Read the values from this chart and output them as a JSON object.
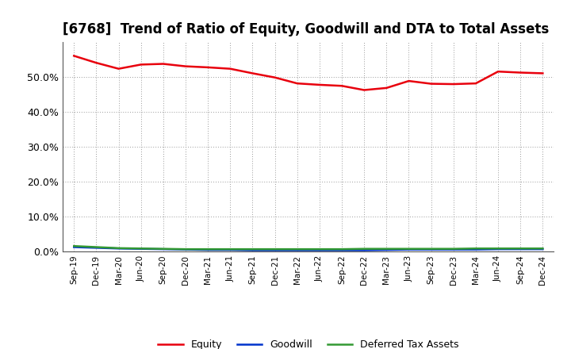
{
  "title": "[6768]  Trend of Ratio of Equity, Goodwill and DTA to Total Assets",
  "labels": [
    "Sep-19",
    "Dec-19",
    "Mar-20",
    "Jun-20",
    "Sep-20",
    "Dec-20",
    "Mar-21",
    "Jun-21",
    "Sep-21",
    "Dec-21",
    "Mar-22",
    "Jun-22",
    "Sep-22",
    "Dec-22",
    "Mar-23",
    "Jun-23",
    "Sep-23",
    "Dec-23",
    "Mar-24",
    "Jun-24",
    "Sep-24",
    "Dec-24"
  ],
  "equity": [
    56.0,
    54.0,
    52.3,
    53.5,
    53.7,
    53.0,
    52.7,
    52.3,
    51.0,
    49.8,
    48.1,
    47.7,
    47.4,
    46.2,
    46.8,
    48.8,
    48.0,
    47.9,
    48.1,
    51.5,
    51.2,
    51.0
  ],
  "goodwill": [
    1.2,
    1.0,
    0.8,
    0.7,
    0.6,
    0.5,
    0.4,
    0.4,
    0.3,
    0.3,
    0.3,
    0.3,
    0.3,
    0.3,
    0.4,
    0.5,
    0.5,
    0.5,
    0.5,
    0.6,
    0.6,
    0.6
  ],
  "dta": [
    1.5,
    1.2,
    0.9,
    0.8,
    0.7,
    0.6,
    0.6,
    0.6,
    0.6,
    0.6,
    0.6,
    0.6,
    0.6,
    0.7,
    0.7,
    0.7,
    0.7,
    0.7,
    0.8,
    0.8,
    0.8,
    0.8
  ],
  "equity_color": "#e8000d",
  "goodwill_color": "#0033cc",
  "dta_color": "#339933",
  "ylim": [
    0,
    60
  ],
  "yticks": [
    0,
    10,
    20,
    30,
    40,
    50
  ],
  "ytick_labels": [
    "0.0%",
    "10.0%",
    "20.0%",
    "30.0%",
    "40.0%",
    "50.0%"
  ],
  "legend_labels": [
    "Equity",
    "Goodwill",
    "Deferred Tax Assets"
  ],
  "background_color": "#ffffff",
  "grid_color": "#999999",
  "title_fontsize": 12,
  "linewidth": 1.8
}
